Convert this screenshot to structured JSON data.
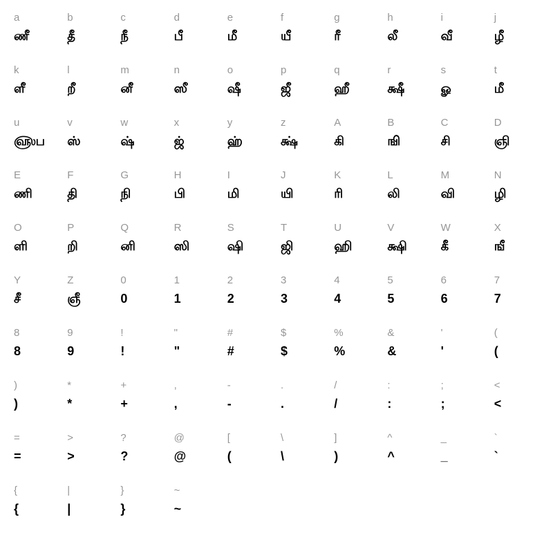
{
  "chart": {
    "type": "character-map",
    "columns": 10,
    "key_color": "#969696",
    "glyph_color": "#000000",
    "key_fontsize": 15,
    "glyph_fontsize": 18,
    "background_color": "#ffffff",
    "cells": [
      {
        "key": "a",
        "glyph": "ணீ"
      },
      {
        "key": "b",
        "glyph": "தீ"
      },
      {
        "key": "c",
        "glyph": "நீ"
      },
      {
        "key": "d",
        "glyph": "பீ"
      },
      {
        "key": "e",
        "glyph": "மீ"
      },
      {
        "key": "f",
        "glyph": "யீ"
      },
      {
        "key": "g",
        "glyph": "ரீ"
      },
      {
        "key": "h",
        "glyph": "லீ"
      },
      {
        "key": "i",
        "glyph": "வீ"
      },
      {
        "key": "j",
        "glyph": "ழீ"
      },
      {
        "key": "k",
        "glyph": "ளீ"
      },
      {
        "key": "l",
        "glyph": "றீ"
      },
      {
        "key": "m",
        "glyph": "னீ"
      },
      {
        "key": "n",
        "glyph": "ஸீ"
      },
      {
        "key": "o",
        "glyph": "ஷீ"
      },
      {
        "key": "p",
        "glyph": "ஜீ"
      },
      {
        "key": "q",
        "glyph": "ஹீ"
      },
      {
        "key": "r",
        "glyph": "க்ஷீ"
      },
      {
        "key": "s",
        "glyph": "ௐ"
      },
      {
        "key": "t",
        "glyph": "மீ"
      },
      {
        "key": "u",
        "glyph": "௵ப"
      },
      {
        "key": "v",
        "glyph": "ஸ்"
      },
      {
        "key": "w",
        "glyph": "ஷ்"
      },
      {
        "key": "x",
        "glyph": "ஜ்"
      },
      {
        "key": "y",
        "glyph": "ஹ்"
      },
      {
        "key": "z",
        "glyph": "க்ஷ்"
      },
      {
        "key": "A",
        "glyph": "கி"
      },
      {
        "key": "B",
        "glyph": "ஙி"
      },
      {
        "key": "C",
        "glyph": "சி"
      },
      {
        "key": "D",
        "glyph": "ஞி"
      },
      {
        "key": "E",
        "glyph": "ணி"
      },
      {
        "key": "F",
        "glyph": "தி"
      },
      {
        "key": "G",
        "glyph": "நி"
      },
      {
        "key": "H",
        "glyph": "பி"
      },
      {
        "key": "I",
        "glyph": "மி"
      },
      {
        "key": "J",
        "glyph": "யி"
      },
      {
        "key": "K",
        "glyph": "ரி"
      },
      {
        "key": "L",
        "glyph": "லி"
      },
      {
        "key": "M",
        "glyph": "வி"
      },
      {
        "key": "N",
        "glyph": "ழி"
      },
      {
        "key": "O",
        "glyph": "ளி"
      },
      {
        "key": "P",
        "glyph": "றி"
      },
      {
        "key": "Q",
        "glyph": "னி"
      },
      {
        "key": "R",
        "glyph": "ஸி"
      },
      {
        "key": "S",
        "glyph": "ஷி"
      },
      {
        "key": "T",
        "glyph": "ஜி"
      },
      {
        "key": "U",
        "glyph": "ஹி"
      },
      {
        "key": "V",
        "glyph": "க்ஷி"
      },
      {
        "key": "W",
        "glyph": "கீ"
      },
      {
        "key": "X",
        "glyph": "ஙீ"
      },
      {
        "key": "Y",
        "glyph": "சீ"
      },
      {
        "key": "Z",
        "glyph": "ஞீ"
      },
      {
        "key": "0",
        "glyph": "0"
      },
      {
        "key": "1",
        "glyph": "1"
      },
      {
        "key": "2",
        "glyph": "2"
      },
      {
        "key": "3",
        "glyph": "3"
      },
      {
        "key": "4",
        "glyph": "4"
      },
      {
        "key": "5",
        "glyph": "5"
      },
      {
        "key": "6",
        "glyph": "6"
      },
      {
        "key": "7",
        "glyph": "7"
      },
      {
        "key": "8",
        "glyph": "8"
      },
      {
        "key": "9",
        "glyph": "9"
      },
      {
        "key": "!",
        "glyph": "!"
      },
      {
        "key": "\"",
        "glyph": "\""
      },
      {
        "key": "#",
        "glyph": "#"
      },
      {
        "key": "$",
        "glyph": "$"
      },
      {
        "key": "%",
        "glyph": "%"
      },
      {
        "key": "&",
        "glyph": "&"
      },
      {
        "key": "'",
        "glyph": "'"
      },
      {
        "key": "(",
        "glyph": "("
      },
      {
        "key": ")",
        "glyph": ")"
      },
      {
        "key": "*",
        "glyph": "*"
      },
      {
        "key": "+",
        "glyph": "+"
      },
      {
        "key": ",",
        "glyph": ","
      },
      {
        "key": "-",
        "glyph": "-"
      },
      {
        "key": ".",
        "glyph": "."
      },
      {
        "key": "/",
        "glyph": "/"
      },
      {
        "key": ":",
        "glyph": ":"
      },
      {
        "key": ";",
        "glyph": ";"
      },
      {
        "key": "<",
        "glyph": "<"
      },
      {
        "key": "=",
        "glyph": "="
      },
      {
        "key": ">",
        "glyph": ">"
      },
      {
        "key": "?",
        "glyph": "?"
      },
      {
        "key": "@",
        "glyph": "@"
      },
      {
        "key": "[",
        "glyph": "("
      },
      {
        "key": "\\",
        "glyph": "\\"
      },
      {
        "key": "]",
        "glyph": ")"
      },
      {
        "key": "^",
        "glyph": "^"
      },
      {
        "key": "_",
        "glyph": "_"
      },
      {
        "key": "`",
        "glyph": "`"
      },
      {
        "key": "{",
        "glyph": "{"
      },
      {
        "key": "|",
        "glyph": "|"
      },
      {
        "key": "}",
        "glyph": "}"
      },
      {
        "key": "~",
        "glyph": "~"
      }
    ]
  }
}
